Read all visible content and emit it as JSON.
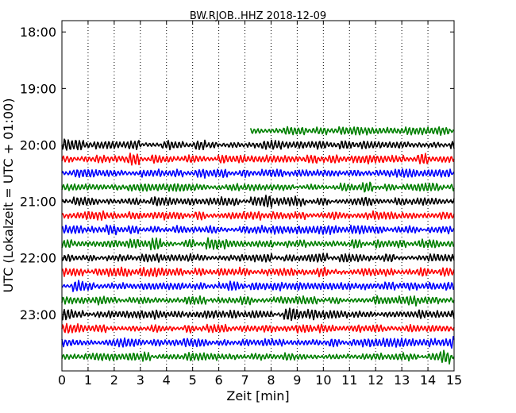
{
  "chart_data": {
    "type": "line",
    "title": "BW.RJOB..HHZ 2018-12-09",
    "xlabel": "Zeit  [min]",
    "ylabel": "UTC (Lokalzeit = UTC + 01:00)",
    "xlim": [
      0,
      15
    ],
    "x_ticks": [
      "0",
      "1",
      "2",
      "3",
      "4",
      "5",
      "6",
      "7",
      "8",
      "9",
      "10",
      "11",
      "12",
      "13",
      "14",
      "15"
    ],
    "y_ticks": [
      "18:00",
      "19:00",
      "20:00",
      "21:00",
      "22:00",
      "23:00"
    ],
    "y_tick_hours": [
      18,
      19,
      20,
      21,
      22,
      23
    ],
    "y_range_hours": [
      17.8,
      24.0
    ],
    "grid": "vertical dotted at each minute",
    "colors": [
      "#000000",
      "#ff0000",
      "#0000ff",
      "#008000"
    ],
    "traces": [
      {
        "hour": 19.75,
        "start_min": 7.2,
        "color": "#008000"
      },
      {
        "hour": 20.0,
        "start_min": 0,
        "color": "#000000"
      },
      {
        "hour": 20.25,
        "start_min": 0,
        "color": "#ff0000"
      },
      {
        "hour": 20.5,
        "start_min": 0,
        "color": "#0000ff"
      },
      {
        "hour": 20.75,
        "start_min": 0,
        "color": "#008000"
      },
      {
        "hour": 21.0,
        "start_min": 0,
        "color": "#000000"
      },
      {
        "hour": 21.25,
        "start_min": 0,
        "color": "#ff0000"
      },
      {
        "hour": 21.5,
        "start_min": 0,
        "color": "#0000ff"
      },
      {
        "hour": 21.75,
        "start_min": 0,
        "color": "#008000"
      },
      {
        "hour": 22.0,
        "start_min": 0,
        "color": "#000000"
      },
      {
        "hour": 22.25,
        "start_min": 0,
        "color": "#ff0000"
      },
      {
        "hour": 22.5,
        "start_min": 0,
        "color": "#0000ff"
      },
      {
        "hour": 22.75,
        "start_min": 0,
        "color": "#008000"
      },
      {
        "hour": 23.0,
        "start_min": 0,
        "color": "#000000"
      },
      {
        "hour": 23.25,
        "start_min": 0,
        "color": "#ff0000"
      },
      {
        "hour": 23.5,
        "start_min": 0,
        "color": "#0000ff"
      },
      {
        "hour": 23.75,
        "start_min": 0,
        "color": "#008000"
      }
    ]
  }
}
